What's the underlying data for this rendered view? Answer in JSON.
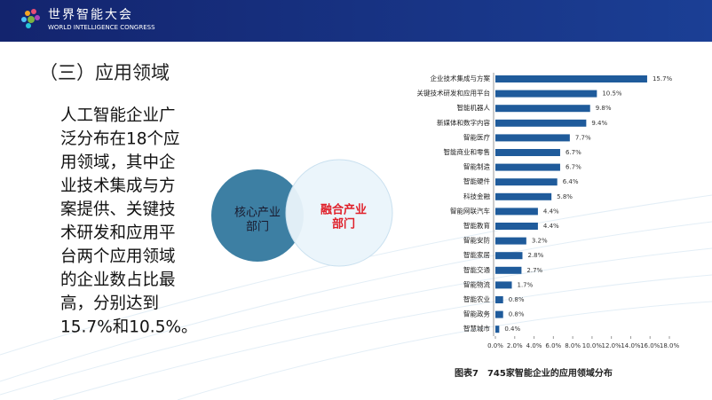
{
  "header": {
    "title": "世界智能大会",
    "subtitle": "WORLD INTELLIGENCE CONGRESS"
  },
  "section_title": "（三）应用领域",
  "body_lines": [
    "人工智能企业广",
    "泛分布在18个应",
    "用领域，其中企",
    "业技术集成与方",
    "案提供、关键技",
    "术研发和应用平",
    "台两个应用领域",
    "的企业数占比最",
    "高，分别达到",
    "15.7%和10.5%。"
  ],
  "venn": {
    "left": [
      "核心产业",
      "部门"
    ],
    "right": [
      "融合产业",
      "部门"
    ]
  },
  "chart_data": {
    "type": "bar",
    "orientation": "horizontal",
    "caption": "图表7　745家智能企业的应用领域分布",
    "categories": [
      "企业技术集成与方案",
      "关键技术研发和应用平台",
      "智能机器人",
      "新媒体和数字内容",
      "智能医疗",
      "智能商业和零售",
      "智能制造",
      "智能硬件",
      "科技金融",
      "智能网联汽车",
      "智能教育",
      "智能安防",
      "智能家居",
      "智能交通",
      "智能物流",
      "智能农业",
      "智能政务",
      "智慧城市"
    ],
    "values": [
      15.7,
      10.5,
      9.8,
      9.4,
      7.7,
      6.7,
      6.7,
      6.4,
      5.8,
      4.4,
      4.4,
      3.2,
      2.8,
      2.7,
      1.7,
      0.8,
      0.8,
      0.4
    ],
    "value_labels": [
      "15.7%",
      "10.5%",
      "9.8%",
      "9.4%",
      "7.7%",
      "6.7%",
      "6.7%",
      "6.4%",
      "5.8%",
      "4.4%",
      "4.4%",
      "3.2%",
      "2.8%",
      "2.7%",
      "1.7%",
      "0.8%",
      "0.8%",
      "0.4%"
    ],
    "color": "#1f5b9b",
    "xlim": [
      0,
      18
    ],
    "xticks": [
      {
        "value": 0,
        "label": "0.0%"
      },
      {
        "value": 2,
        "label": "2.0%"
      },
      {
        "value": 4,
        "label": "4.0%"
      },
      {
        "value": 6,
        "label": "6.0%"
      },
      {
        "value": 8,
        "label": "8.0%"
      },
      {
        "value": 10,
        "label": "10.0%"
      },
      {
        "value": 12,
        "label": "12.0%"
      },
      {
        "value": 14,
        "label": "14.0%"
      },
      {
        "value": 16,
        "label": "16.0%"
      },
      {
        "value": 18,
        "label": "18.0%"
      }
    ],
    "grid": false
  }
}
